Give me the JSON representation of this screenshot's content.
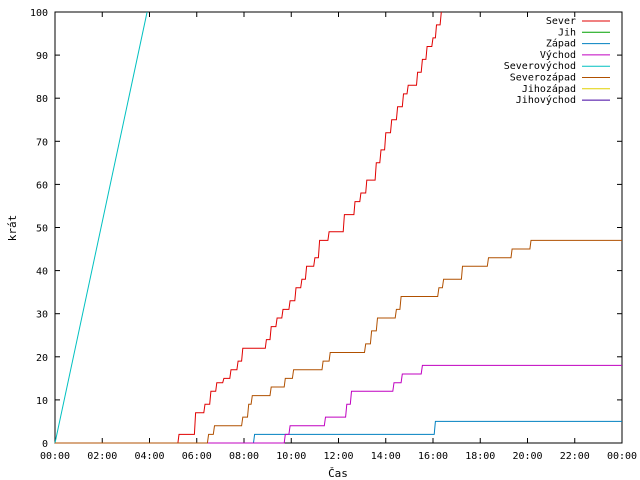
{
  "chart_data": {
    "type": "line",
    "title": "",
    "xlabel": "Čas",
    "ylabel": "krát",
    "xlim": [
      0,
      24
    ],
    "ylim": [
      0,
      100
    ],
    "x_ticks": [
      "00:00",
      "02:00",
      "04:00",
      "06:00",
      "08:00",
      "10:00",
      "12:00",
      "14:00",
      "16:00",
      "18:00",
      "20:00",
      "22:00",
      "00:00"
    ],
    "y_ticks": [
      0,
      10,
      20,
      30,
      40,
      50,
      60,
      70,
      80,
      90,
      100
    ],
    "grid": false,
    "legend_position": "top-right",
    "series": [
      {
        "name": "Sever",
        "color": "#e00000",
        "step": true,
        "points": [
          [
            0,
            0
          ],
          [
            5.2,
            0
          ],
          [
            5.25,
            2
          ],
          [
            5.9,
            2
          ],
          [
            5.95,
            7
          ],
          [
            6.3,
            7
          ],
          [
            6.35,
            9
          ],
          [
            6.55,
            9
          ],
          [
            6.6,
            12
          ],
          [
            6.8,
            12
          ],
          [
            6.85,
            14
          ],
          [
            7.1,
            14
          ],
          [
            7.15,
            15
          ],
          [
            7.4,
            15
          ],
          [
            7.45,
            17
          ],
          [
            7.7,
            17
          ],
          [
            7.75,
            19
          ],
          [
            7.9,
            19
          ],
          [
            7.95,
            22
          ],
          [
            8.9,
            22
          ],
          [
            8.95,
            24
          ],
          [
            9.1,
            24
          ],
          [
            9.15,
            27
          ],
          [
            9.35,
            27
          ],
          [
            9.4,
            29
          ],
          [
            9.6,
            29
          ],
          [
            9.65,
            31
          ],
          [
            9.9,
            31
          ],
          [
            9.95,
            33
          ],
          [
            10.15,
            33
          ],
          [
            10.2,
            36
          ],
          [
            10.4,
            36
          ],
          [
            10.45,
            38
          ],
          [
            10.6,
            38
          ],
          [
            10.65,
            41
          ],
          [
            10.95,
            41
          ],
          [
            11.0,
            43
          ],
          [
            11.15,
            43
          ],
          [
            11.2,
            47
          ],
          [
            11.55,
            47
          ],
          [
            11.6,
            49
          ],
          [
            12.2,
            49
          ],
          [
            12.25,
            53
          ],
          [
            12.65,
            53
          ],
          [
            12.7,
            56
          ],
          [
            12.9,
            56
          ],
          [
            12.95,
            58
          ],
          [
            13.15,
            58
          ],
          [
            13.2,
            61
          ],
          [
            13.55,
            61
          ],
          [
            13.6,
            65
          ],
          [
            13.75,
            65
          ],
          [
            13.8,
            68
          ],
          [
            13.95,
            68
          ],
          [
            14.0,
            72
          ],
          [
            14.2,
            72
          ],
          [
            14.25,
            75
          ],
          [
            14.45,
            75
          ],
          [
            14.5,
            78
          ],
          [
            14.7,
            78
          ],
          [
            14.75,
            81
          ],
          [
            14.9,
            81
          ],
          [
            14.95,
            83
          ],
          [
            15.3,
            83
          ],
          [
            15.35,
            86
          ],
          [
            15.5,
            86
          ],
          [
            15.55,
            89
          ],
          [
            15.7,
            89
          ],
          [
            15.75,
            92
          ],
          [
            15.95,
            92
          ],
          [
            16.0,
            94
          ],
          [
            16.1,
            94
          ],
          [
            16.15,
            97
          ],
          [
            16.3,
            97
          ],
          [
            16.35,
            100
          ]
        ]
      },
      {
        "name": "Jih",
        "color": "#00a000",
        "step": true,
        "points": []
      },
      {
        "name": "Západ",
        "color": "#0080c0",
        "step": true,
        "points": [
          [
            0,
            0
          ],
          [
            8.4,
            0
          ],
          [
            8.45,
            2
          ],
          [
            16.05,
            2
          ],
          [
            16.1,
            5
          ],
          [
            24,
            5
          ]
        ]
      },
      {
        "name": "Východ",
        "color": "#c000c0",
        "step": true,
        "points": [
          [
            0,
            0
          ],
          [
            9.7,
            0
          ],
          [
            9.75,
            2
          ],
          [
            9.9,
            2
          ],
          [
            9.95,
            4
          ],
          [
            11.4,
            4
          ],
          [
            11.45,
            6
          ],
          [
            12.3,
            6
          ],
          [
            12.35,
            9
          ],
          [
            12.5,
            9
          ],
          [
            12.55,
            12
          ],
          [
            14.3,
            12
          ],
          [
            14.35,
            14
          ],
          [
            14.65,
            14
          ],
          [
            14.7,
            16
          ],
          [
            15.5,
            16
          ],
          [
            15.55,
            18
          ],
          [
            24,
            18
          ]
        ]
      },
      {
        "name": "Severovýchod",
        "color": "#00c0c0",
        "step": false,
        "points": [
          [
            0,
            0
          ],
          [
            3.9,
            100
          ]
        ]
      },
      {
        "name": "Severozápad",
        "color": "#b05000",
        "step": true,
        "points": [
          [
            0,
            0
          ],
          [
            6.45,
            0
          ],
          [
            6.5,
            2
          ],
          [
            6.7,
            2
          ],
          [
            6.75,
            4
          ],
          [
            7.9,
            4
          ],
          [
            7.95,
            6
          ],
          [
            8.15,
            6
          ],
          [
            8.2,
            9
          ],
          [
            8.3,
            9
          ],
          [
            8.35,
            11
          ],
          [
            9.1,
            11
          ],
          [
            9.15,
            13
          ],
          [
            9.7,
            13
          ],
          [
            9.75,
            15
          ],
          [
            10.05,
            15
          ],
          [
            10.1,
            17
          ],
          [
            11.3,
            17
          ],
          [
            11.35,
            19
          ],
          [
            11.6,
            19
          ],
          [
            11.65,
            21
          ],
          [
            13.1,
            21
          ],
          [
            13.15,
            23
          ],
          [
            13.35,
            23
          ],
          [
            13.4,
            26
          ],
          [
            13.6,
            26
          ],
          [
            13.65,
            29
          ],
          [
            14.4,
            29
          ],
          [
            14.45,
            31
          ],
          [
            14.6,
            31
          ],
          [
            14.65,
            34
          ],
          [
            16.2,
            34
          ],
          [
            16.25,
            36
          ],
          [
            16.4,
            36
          ],
          [
            16.45,
            38
          ],
          [
            17.2,
            38
          ],
          [
            17.25,
            41
          ],
          [
            18.3,
            41
          ],
          [
            18.35,
            43
          ],
          [
            19.3,
            43
          ],
          [
            19.35,
            45
          ],
          [
            20.1,
            45
          ],
          [
            20.15,
            47
          ],
          [
            24,
            47
          ]
        ]
      },
      {
        "name": "Jihozápad",
        "color": "#e0d000",
        "step": true,
        "points": []
      },
      {
        "name": "Jihovýchod",
        "color": "#4000a0",
        "step": true,
        "points": []
      }
    ]
  }
}
